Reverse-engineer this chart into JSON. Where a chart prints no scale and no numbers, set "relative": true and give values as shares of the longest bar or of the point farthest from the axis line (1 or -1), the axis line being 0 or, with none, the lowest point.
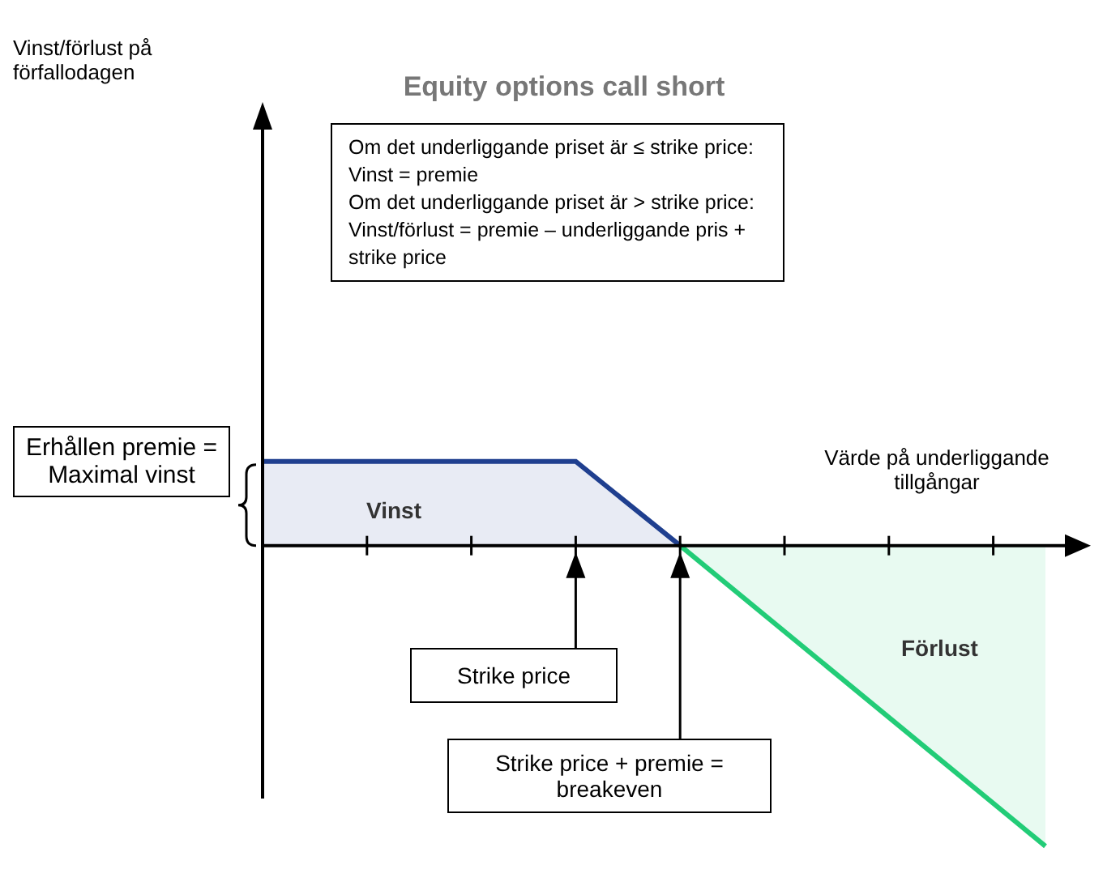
{
  "chart_data": {
    "type": "area",
    "relative": true,
    "title": "Equity options call short",
    "xlabel": "Värde på underliggande tillgångar",
    "categories": [
      null,
      null,
      null,
      null,
      null,
      null,
      null,
      null,
      null,
      null,
      null,
      null,
      null,
      null,
      null,
      null
    ],
    "series": [
      {
        "name": "Vinst",
        "color": "#1f3f8f",
        "values": [
          0.28,
          null,
          null,
          null,
          null,
          null,
          0.28,
          null,
          0,
          null,
          null,
          null,
          null,
          null,
          null,
          null
        ]
      },
      {
        "name": "Förlust",
        "color": "#22cc77",
        "values": [
          null,
          null,
          null,
          null,
          null,
          null,
          null,
          null,
          0,
          null,
          null,
          null,
          null,
          null,
          null,
          -1
        ]
      }
    ],
    "annotations": [
      "Vinst/förlust på förfallodagen",
      "Om det underliggande priset är ≤ strike price:\nVinst = premie\nOm det underliggande priset är > strike price:\nVinst/förlust = premie – underliggande pris + strike price",
      "Erhållen premie = Maximal vinst",
      "Strike price",
      "Strike price + premie = breakeven"
    ]
  }
}
